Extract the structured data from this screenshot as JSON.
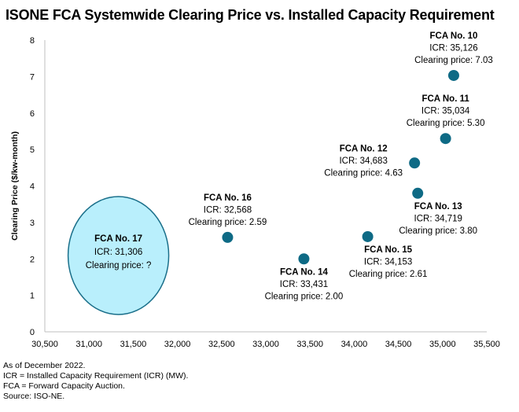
{
  "chart_data": {
    "type": "scatter",
    "title": "ISONE FCA Systemwide Clearing Price vs. Installed Capacity Requirement",
    "xlabel": "",
    "ylabel": "Clearing Price ($/kw-month)",
    "xlim": [
      30500,
      35500
    ],
    "ylim": [
      0,
      8
    ],
    "xticks": [
      30500,
      31000,
      31500,
      32000,
      32500,
      33000,
      33500,
      34000,
      34500,
      35000,
      35500
    ],
    "xtick_labels": [
      "30,500",
      "31,000",
      "31,500",
      "32,000",
      "32,500",
      "33,000",
      "33,500",
      "34,000",
      "34,500",
      "35,000",
      "35,500"
    ],
    "yticks": [
      0,
      1,
      2,
      3,
      4,
      5,
      6,
      7,
      8
    ],
    "ytick_labels": [
      "0",
      "1",
      "2",
      "3",
      "4",
      "5",
      "6",
      "7",
      "8"
    ],
    "grid": false,
    "marker_color": "#0e6a85",
    "points": [
      {
        "name": "FCA No. 10",
        "icr": 35126,
        "price": 7.03,
        "icr_label": "ICR: 35,126",
        "price_label": "Clearing price: 7.03",
        "label_pos": "above"
      },
      {
        "name": "FCA No. 11",
        "icr": 35034,
        "price": 5.3,
        "icr_label": "ICR: 35,034",
        "price_label": "Clearing price: 5.30",
        "label_pos": "above"
      },
      {
        "name": "FCA No. 12",
        "icr": 34683,
        "price": 4.63,
        "icr_label": "ICR: 34,683",
        "price_label": "Clearing price: 4.63",
        "label_pos": "left"
      },
      {
        "name": "FCA No. 13",
        "icr": 34719,
        "price": 3.8,
        "icr_label": "ICR: 34,719",
        "price_label": "Clearing price: 3.80",
        "label_pos": "below-right"
      },
      {
        "name": "FCA No. 14",
        "icr": 33431,
        "price": 2.0,
        "icr_label": "ICR: 33,431",
        "price_label": "Clearing price: 2.00",
        "label_pos": "below"
      },
      {
        "name": "FCA No. 15",
        "icr": 34153,
        "price": 2.61,
        "icr_label": "ICR: 34,153",
        "price_label": "Clearing price: 2.61",
        "label_pos": "below-right"
      },
      {
        "name": "FCA No. 16",
        "icr": 32568,
        "price": 2.59,
        "icr_label": "ICR: 32,568",
        "price_label": "Clearing price: 2.59",
        "label_pos": "above"
      }
    ],
    "highlight": {
      "name": "FCA No. 17",
      "icr": 31306,
      "price": null,
      "icr_label": "ICR: 31,306",
      "price_label": "Clearing price: ?",
      "fill_color": "#b9effc",
      "stroke_color": "#1a6f8a"
    }
  },
  "footnotes": [
    "As of December 2022.",
    "ICR = Installed Capacity Requirement (ICR) (MW).",
    "FCA = Forward Capacity Auction.",
    "Source: ISO-NE."
  ]
}
